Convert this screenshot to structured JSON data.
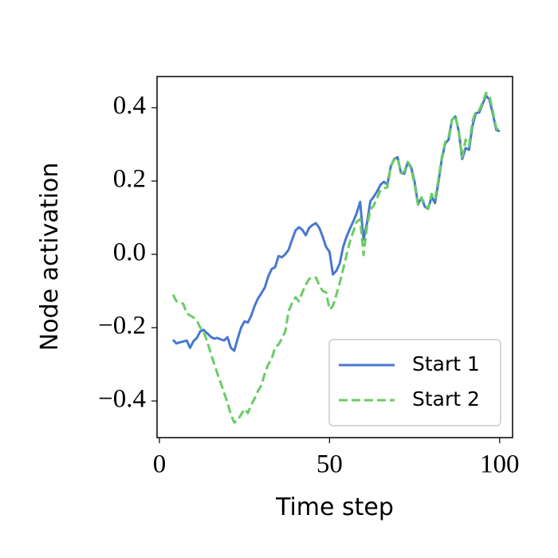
{
  "chart_data": {
    "type": "line",
    "xlabel": "Time step",
    "ylabel": "Node activation",
    "x": [
      4,
      5,
      6,
      7,
      8,
      9,
      10,
      11,
      12,
      13,
      14,
      15,
      16,
      17,
      18,
      19,
      20,
      21,
      22,
      23,
      24,
      25,
      26,
      27,
      28,
      29,
      30,
      31,
      32,
      33,
      34,
      35,
      36,
      37,
      38,
      39,
      40,
      41,
      42,
      43,
      44,
      45,
      46,
      47,
      48,
      49,
      50,
      51,
      52,
      53,
      54,
      55,
      56,
      57,
      58,
      59,
      60,
      61,
      62,
      63,
      64,
      65,
      66,
      67,
      68,
      69,
      70,
      71,
      72,
      73,
      74,
      75,
      76,
      77,
      78,
      79,
      80,
      81,
      82,
      83,
      84,
      85,
      86,
      87,
      88,
      89,
      90,
      91,
      92,
      93,
      94,
      95,
      96,
      97,
      98,
      99,
      100
    ],
    "series": [
      {
        "name": "Start 1",
        "color": "#4878cf",
        "linestyle": "solid",
        "values": [
          -0.233,
          -0.243,
          -0.24,
          -0.238,
          -0.235,
          -0.255,
          -0.237,
          -0.228,
          -0.21,
          -0.206,
          -0.215,
          -0.224,
          -0.23,
          -0.228,
          -0.232,
          -0.235,
          -0.226,
          -0.255,
          -0.263,
          -0.23,
          -0.2,
          -0.183,
          -0.186,
          -0.167,
          -0.14,
          -0.12,
          -0.106,
          -0.09,
          -0.06,
          -0.04,
          -0.035,
          -0.005,
          -0.008,
          0,
          0.013,
          0.04,
          0.065,
          0.074,
          0.067,
          0.052,
          0.072,
          0.08,
          0.085,
          0.072,
          0.048,
          0.02,
          0.007,
          -0.055,
          -0.045,
          -0.025,
          0.02,
          0.048,
          0.07,
          0.09,
          0.113,
          0.143,
          0.04,
          0.085,
          0.145,
          0.157,
          0.172,
          0.19,
          0.198,
          0.19,
          0.24,
          0.26,
          0.265,
          0.222,
          0.22,
          0.252,
          0.237,
          0.198,
          0.137,
          0.155,
          0.13,
          0.124,
          0.157,
          0.14,
          0.196,
          0.26,
          0.302,
          0.313,
          0.367,
          0.376,
          0.335,
          0.26,
          0.29,
          0.285,
          0.35,
          0.385,
          0.387,
          0.41,
          0.433,
          0.422,
          0.383,
          0.34,
          0.335
        ]
      },
      {
        "name": "Start 2",
        "color": "#6acc64",
        "linestyle": "dashed",
        "values": [
          -0.11,
          -0.128,
          -0.13,
          -0.135,
          -0.16,
          -0.167,
          -0.172,
          -0.18,
          -0.2,
          -0.21,
          -0.237,
          -0.267,
          -0.296,
          -0.324,
          -0.35,
          -0.378,
          -0.404,
          -0.437,
          -0.459,
          -0.452,
          -0.437,
          -0.422,
          -0.433,
          -0.41,
          -0.393,
          -0.372,
          -0.357,
          -0.324,
          -0.3,
          -0.285,
          -0.254,
          -0.246,
          -0.23,
          -0.21,
          -0.154,
          -0.133,
          -0.117,
          -0.128,
          -0.104,
          -0.083,
          -0.067,
          -0.063,
          -0.063,
          -0.085,
          -0.1,
          -0.104,
          -0.15,
          -0.141,
          -0.11,
          -0.078,
          -0.041,
          -0.002,
          0.035,
          0.063,
          0.089,
          0.096,
          -0.002,
          0.074,
          0.122,
          0.133,
          0.154,
          0.176,
          0.18,
          0.183,
          0.24,
          0.258,
          0.263,
          0.222,
          0.226,
          0.252,
          0.233,
          0.19,
          0.135,
          0.155,
          0.137,
          0.124,
          0.165,
          0.15,
          0.204,
          0.265,
          0.306,
          0.32,
          0.367,
          0.378,
          0.335,
          0.265,
          0.313,
          0.296,
          0.363,
          0.39,
          0.393,
          0.415,
          0.44,
          0.433,
          0.39,
          0.345,
          0.335
        ]
      }
    ],
    "xlim": [
      -0.7,
      103.8
    ],
    "ylim": [
      -0.5,
      0.485
    ],
    "xticks": [
      0,
      50,
      100
    ],
    "yticks": [
      {
        "value": -0.4,
        "label": "−0.4"
      },
      {
        "value": -0.2,
        "label": "−0.2"
      },
      {
        "value": 0,
        "label": "0.0"
      },
      0.2,
      0.4
    ],
    "legend": "lower right",
    "grid": false
  }
}
